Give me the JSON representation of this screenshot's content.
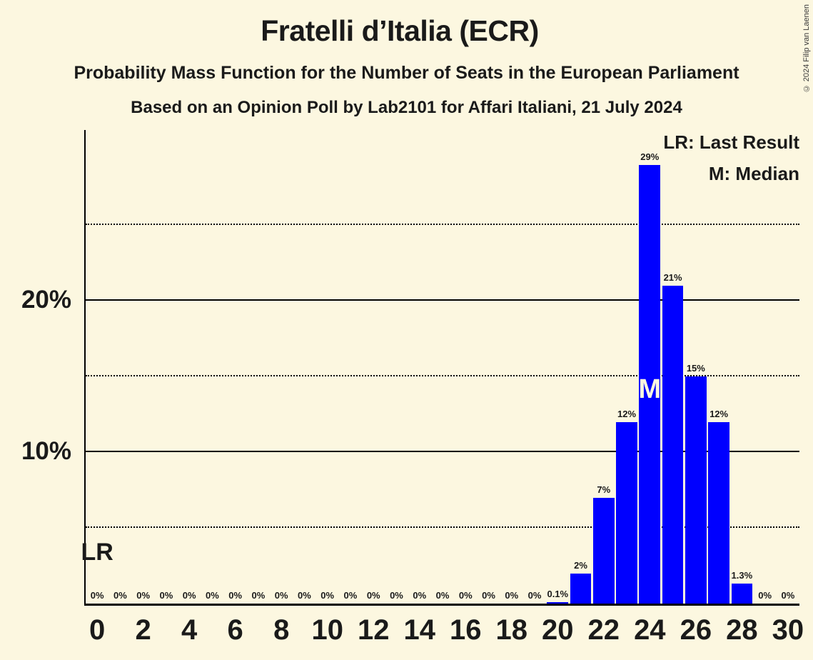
{
  "title": "Fratelli d’Italia (ECR)",
  "subtitle": "Probability Mass Function for the Number of Seats in the European Parliament",
  "poll_line": "Based on an Opinion Poll by Lab2101 for Affari Italiani, 21 July 2024",
  "copyright": "© 2024 Filip van Laenen",
  "legend": {
    "lr": "LR: Last Result",
    "m": "M: Median"
  },
  "annotations": {
    "last_result": {
      "label": "LR",
      "seat": 0
    },
    "median": {
      "label": "M",
      "seat": 24
    }
  },
  "colors": {
    "background": "#fcf7e0",
    "bar": "#0000ff",
    "text": "#1a1a1a",
    "axis": "#000000"
  },
  "y_axis": {
    "max_percent": 31.3,
    "solid_gridlines_percent": [
      10,
      20
    ],
    "dotted_gridlines_percent": [
      5,
      15,
      25
    ],
    "labels": [
      {
        "percent": 10,
        "text": "10%"
      },
      {
        "percent": 20,
        "text": "20%"
      }
    ]
  },
  "x_axis": {
    "ticks": [
      {
        "seat": 0,
        "label": "0"
      },
      {
        "seat": 2,
        "label": "2"
      },
      {
        "seat": 4,
        "label": "4"
      },
      {
        "seat": 6,
        "label": "6"
      },
      {
        "seat": 8,
        "label": "8"
      },
      {
        "seat": 10,
        "label": "10"
      },
      {
        "seat": 12,
        "label": "12"
      },
      {
        "seat": 14,
        "label": "14"
      },
      {
        "seat": 16,
        "label": "16"
      },
      {
        "seat": 18,
        "label": "18"
      },
      {
        "seat": 20,
        "label": "20"
      },
      {
        "seat": 22,
        "label": "22"
      },
      {
        "seat": 24,
        "label": "24"
      },
      {
        "seat": 26,
        "label": "26"
      },
      {
        "seat": 28,
        "label": "28"
      },
      {
        "seat": 30,
        "label": "30"
      }
    ]
  },
  "chart_data": {
    "type": "bar",
    "title": "Probability Mass Function for the Number of Seats in the European Parliament",
    "x": [
      0,
      1,
      2,
      3,
      4,
      5,
      6,
      7,
      8,
      9,
      10,
      11,
      12,
      13,
      14,
      15,
      16,
      17,
      18,
      19,
      20,
      21,
      22,
      23,
      24,
      25,
      26,
      27,
      28,
      29,
      30
    ],
    "values": [
      0,
      0,
      0,
      0,
      0,
      0,
      0,
      0,
      0,
      0,
      0,
      0,
      0,
      0,
      0,
      0,
      0,
      0,
      0,
      0,
      0.1,
      2,
      7,
      12,
      29,
      21,
      15,
      12,
      1.3,
      0,
      0
    ],
    "value_labels": [
      "0%",
      "0%",
      "0%",
      "0%",
      "0%",
      "0%",
      "0%",
      "0%",
      "0%",
      "0%",
      "0%",
      "0%",
      "0%",
      "0%",
      "0%",
      "0%",
      "0%",
      "0%",
      "0%",
      "0%",
      "0.1%",
      "2%",
      "7%",
      "12%",
      "29%",
      "21%",
      "15%",
      "12%",
      "1.3%",
      "0%",
      "0%"
    ],
    "ylim": [
      0,
      31.3
    ],
    "gridlines": "horizontal only",
    "legend_position": "top-right inside plot"
  }
}
